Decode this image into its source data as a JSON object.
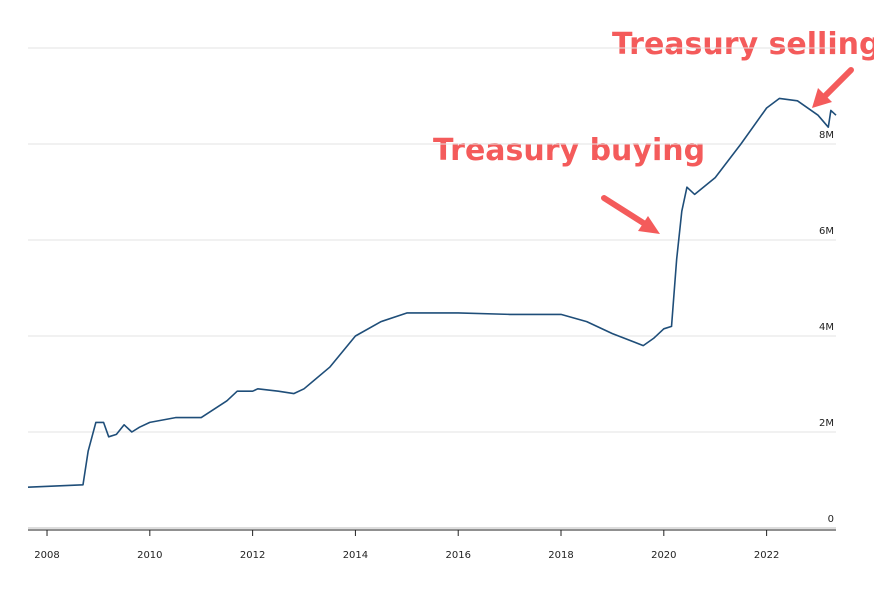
{
  "chart_data": {
    "type": "line",
    "annotations": [
      "Treasury buying",
      "Treasury selling"
    ],
    "xlim": [
      2007.63,
      2023.35
    ],
    "xticks": [
      2008,
      2010,
      2012,
      2014,
      2016,
      2018,
      2020,
      2022
    ],
    "ylim": [
      0,
      10000000
    ],
    "yticks": [
      0,
      {
        "value": 2000000,
        "label": "2M"
      },
      {
        "value": 4000000,
        "label": "4M"
      },
      {
        "value": 6000000,
        "label": "6M"
      },
      {
        "value": 8000000,
        "label": "8M"
      }
    ],
    "grid": true,
    "x": [
      2007.63,
      2008.7,
      2008.8,
      2008.95,
      2009.1,
      2009.2,
      2009.35,
      2009.5,
      2009.65,
      2009.8,
      2010.0,
      2010.5,
      2011.0,
      2011.5,
      2011.7,
      2012.0,
      2012.1,
      2012.5,
      2012.8,
      2013.0,
      2013.5,
      2014.0,
      2014.5,
      2015.0,
      2016.0,
      2017.0,
      2018.0,
      2018.5,
      2019.0,
      2019.6,
      2019.8,
      2020.0,
      2020.15,
      2020.25,
      2020.35,
      2020.45,
      2020.6,
      2021.0,
      2021.5,
      2022.0,
      2022.25,
      2022.6,
      2023.0,
      2023.2,
      2023.25,
      2023.35
    ],
    "series": [
      {
        "color": "#1f4e79",
        "values": [
          850000,
          900000,
          1600000,
          2200000,
          2200000,
          1900000,
          1950000,
          2150000,
          2000000,
          2100000,
          2200000,
          2300000,
          2300000,
          2650000,
          2850000,
          2850000,
          2900000,
          2850000,
          2800000,
          2900000,
          3350000,
          4000000,
          4300000,
          4480000,
          4480000,
          4450000,
          4450000,
          4300000,
          4050000,
          3800000,
          3950000,
          4150000,
          4200000,
          5600000,
          6600000,
          7100000,
          6950000,
          7300000,
          8000000,
          8750000,
          8950000,
          8900000,
          8600000,
          8350000,
          8700000,
          8600000
        ]
      }
    ]
  }
}
